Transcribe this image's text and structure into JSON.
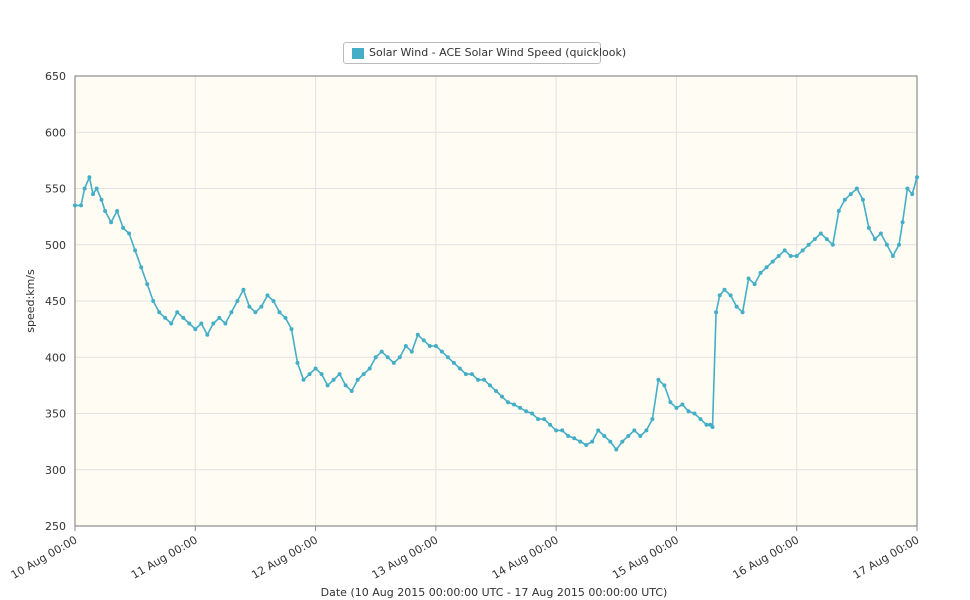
{
  "chart_data": {
    "type": "line",
    "xlabel": "Date (10 Aug 2015 00:00:00 UTC - 17 Aug 2015 00:00:00 UTC)",
    "ylabel": "speed:km/s",
    "ylim": [
      250,
      650
    ],
    "yticks": [
      250,
      300,
      350,
      400,
      450,
      500,
      550,
      600,
      650
    ],
    "xlim_days": [
      0,
      7
    ],
    "xtick_labels": [
      "10 Aug 00:00",
      "11 Aug 00:00",
      "12 Aug 00:00",
      "13 Aug 00:00",
      "14 Aug 00:00",
      "15 Aug 00:00",
      "16 Aug 00:00",
      "17 Aug 00:00"
    ],
    "grid": true,
    "legend_position": "top-center",
    "series": [
      {
        "name": "Solar Wind - ACE Solar Wind Speed (quicklook)",
        "color": "#45aec7",
        "points": [
          [
            0.0,
            535
          ],
          [
            0.05,
            535
          ],
          [
            0.08,
            550
          ],
          [
            0.12,
            560
          ],
          [
            0.15,
            545
          ],
          [
            0.18,
            550
          ],
          [
            0.22,
            540
          ],
          [
            0.25,
            530
          ],
          [
            0.3,
            520
          ],
          [
            0.35,
            530
          ],
          [
            0.4,
            515
          ],
          [
            0.45,
            510
          ],
          [
            0.5,
            495
          ],
          [
            0.55,
            480
          ],
          [
            0.6,
            465
          ],
          [
            0.65,
            450
          ],
          [
            0.7,
            440
          ],
          [
            0.75,
            435
          ],
          [
            0.8,
            430
          ],
          [
            0.85,
            440
          ],
          [
            0.9,
            435
          ],
          [
            0.95,
            430
          ],
          [
            1.0,
            425
          ],
          [
            1.05,
            430
          ],
          [
            1.1,
            420
          ],
          [
            1.15,
            430
          ],
          [
            1.2,
            435
          ],
          [
            1.25,
            430
          ],
          [
            1.3,
            440
          ],
          [
            1.35,
            450
          ],
          [
            1.4,
            460
          ],
          [
            1.45,
            445
          ],
          [
            1.5,
            440
          ],
          [
            1.55,
            445
          ],
          [
            1.6,
            455
          ],
          [
            1.65,
            450
          ],
          [
            1.7,
            440
          ],
          [
            1.75,
            435
          ],
          [
            1.8,
            425
          ],
          [
            1.85,
            395
          ],
          [
            1.9,
            380
          ],
          [
            1.95,
            385
          ],
          [
            2.0,
            390
          ],
          [
            2.05,
            385
          ],
          [
            2.1,
            375
          ],
          [
            2.15,
            380
          ],
          [
            2.2,
            385
          ],
          [
            2.25,
            375
          ],
          [
            2.3,
            370
          ],
          [
            2.35,
            380
          ],
          [
            2.4,
            385
          ],
          [
            2.45,
            390
          ],
          [
            2.5,
            400
          ],
          [
            2.55,
            405
          ],
          [
            2.6,
            400
          ],
          [
            2.65,
            395
          ],
          [
            2.7,
            400
          ],
          [
            2.75,
            410
          ],
          [
            2.8,
            405
          ],
          [
            2.85,
            420
          ],
          [
            2.9,
            415
          ],
          [
            2.95,
            410
          ],
          [
            3.0,
            410
          ],
          [
            3.05,
            405
          ],
          [
            3.1,
            400
          ],
          [
            3.15,
            395
          ],
          [
            3.2,
            390
          ],
          [
            3.25,
            385
          ],
          [
            3.3,
            385
          ],
          [
            3.35,
            380
          ],
          [
            3.4,
            380
          ],
          [
            3.45,
            375
          ],
          [
            3.5,
            370
          ],
          [
            3.55,
            365
          ],
          [
            3.6,
            360
          ],
          [
            3.65,
            358
          ],
          [
            3.7,
            355
          ],
          [
            3.75,
            352
          ],
          [
            3.8,
            350
          ],
          [
            3.85,
            345
          ],
          [
            3.9,
            345
          ],
          [
            3.95,
            340
          ],
          [
            4.0,
            335
          ],
          [
            4.05,
            335
          ],
          [
            4.1,
            330
          ],
          [
            4.15,
            328
          ],
          [
            4.2,
            325
          ],
          [
            4.25,
            322
          ],
          [
            4.3,
            325
          ],
          [
            4.35,
            335
          ],
          [
            4.4,
            330
          ],
          [
            4.45,
            325
          ],
          [
            4.5,
            318
          ],
          [
            4.55,
            325
          ],
          [
            4.6,
            330
          ],
          [
            4.65,
            335
          ],
          [
            4.7,
            330
          ],
          [
            4.75,
            335
          ],
          [
            4.8,
            345
          ],
          [
            4.85,
            380
          ],
          [
            4.9,
            375
          ],
          [
            4.95,
            360
          ],
          [
            5.0,
            355
          ],
          [
            5.05,
            358
          ],
          [
            5.1,
            352
          ],
          [
            5.15,
            350
          ],
          [
            5.2,
            345
          ],
          [
            5.25,
            340
          ],
          [
            5.28,
            340
          ],
          [
            5.3,
            338
          ],
          [
            5.33,
            440
          ],
          [
            5.36,
            455
          ],
          [
            5.4,
            460
          ],
          [
            5.45,
            455
          ],
          [
            5.5,
            445
          ],
          [
            5.55,
            440
          ],
          [
            5.6,
            470
          ],
          [
            5.65,
            465
          ],
          [
            5.7,
            475
          ],
          [
            5.75,
            480
          ],
          [
            5.8,
            485
          ],
          [
            5.85,
            490
          ],
          [
            5.9,
            495
          ],
          [
            5.95,
            490
          ],
          [
            6.0,
            490
          ],
          [
            6.05,
            495
          ],
          [
            6.1,
            500
          ],
          [
            6.15,
            505
          ],
          [
            6.2,
            510
          ],
          [
            6.25,
            505
          ],
          [
            6.3,
            500
          ],
          [
            6.35,
            530
          ],
          [
            6.4,
            540
          ],
          [
            6.45,
            545
          ],
          [
            6.5,
            550
          ],
          [
            6.55,
            540
          ],
          [
            6.6,
            515
          ],
          [
            6.65,
            505
          ],
          [
            6.7,
            510
          ],
          [
            6.75,
            500
          ],
          [
            6.8,
            490
          ],
          [
            6.85,
            500
          ],
          [
            6.88,
            520
          ],
          [
            6.92,
            550
          ],
          [
            6.96,
            545
          ],
          [
            7.0,
            560
          ]
        ]
      }
    ]
  }
}
